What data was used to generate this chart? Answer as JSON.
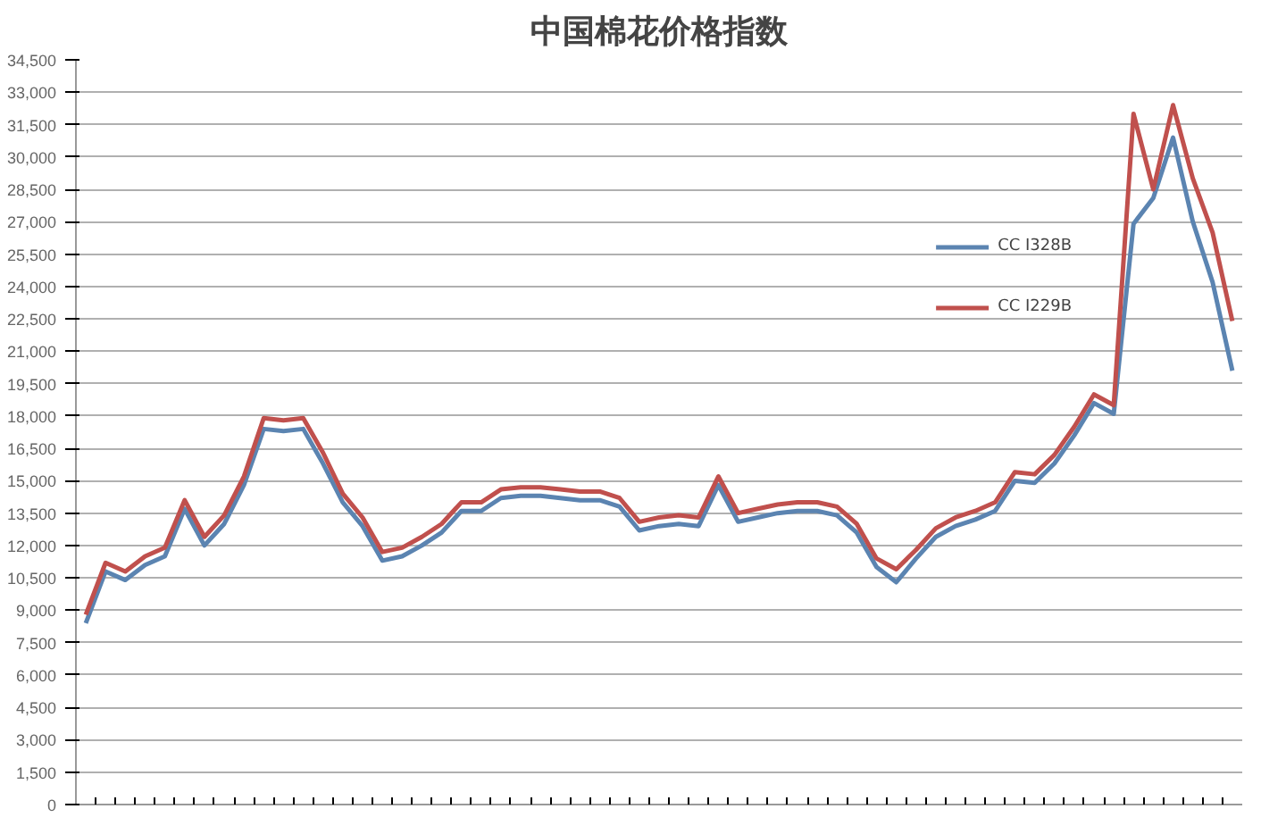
{
  "chart_data": {
    "type": "line",
    "title": "中国棉花价格指数",
    "categories": [
      null,
      null,
      null,
      null,
      null,
      null,
      null,
      null,
      null,
      null,
      null,
      null,
      null,
      null,
      null,
      null,
      null,
      null,
      null,
      null,
      null,
      null,
      null,
      null,
      null,
      null,
      null,
      null,
      null,
      null,
      null,
      null,
      null,
      null,
      null,
      null,
      null,
      null,
      null,
      null,
      null,
      null,
      null,
      null,
      null,
      null,
      null,
      null,
      null,
      null,
      null,
      null,
      null,
      null,
      null,
      null,
      null,
      null,
      null
    ],
    "series": [
      {
        "name": "CC I328B",
        "color": "#5b84b1",
        "values": [
          8400,
          10800,
          10400,
          11100,
          11500,
          13700,
          12000,
          13000,
          14800,
          17400,
          17300,
          17400,
          15800,
          14000,
          12900,
          11300,
          11500,
          12000,
          12600,
          13600,
          13600,
          14200,
          14300,
          14300,
          14200,
          14100,
          14100,
          13800,
          12700,
          12900,
          13000,
          12900,
          14800,
          13100,
          13300,
          13500,
          13600,
          13600,
          13400,
          12600,
          11000,
          10300,
          11400,
          12400,
          12900,
          13200,
          13600,
          15000,
          14900,
          15800,
          17100,
          18600,
          18100,
          26900,
          28100,
          30900,
          27000,
          24200,
          20100
        ]
      },
      {
        "name": "CC I229B",
        "color": "#c0504d",
        "values": [
          8800,
          11200,
          10800,
          11500,
          11900,
          14100,
          12400,
          13400,
          15200,
          17900,
          17800,
          17900,
          16300,
          14400,
          13300,
          11700,
          11900,
          12400,
          13000,
          14000,
          14000,
          14600,
          14700,
          14700,
          14600,
          14500,
          14500,
          14200,
          13100,
          13300,
          13400,
          13300,
          15200,
          13500,
          13700,
          13900,
          14000,
          14000,
          13800,
          13000,
          11400,
          10900,
          11800,
          12800,
          13300,
          13600,
          14000,
          15400,
          15300,
          16200,
          17500,
          19000,
          18500,
          32000,
          28500,
          32400,
          29000,
          26500,
          22400
        ]
      }
    ],
    "ylim": [
      0,
      34500
    ],
    "yticks": [
      {
        "value": 0,
        "label": "0"
      },
      {
        "value": 1500,
        "label": "1,500"
      },
      {
        "value": 3000,
        "label": "3,000"
      },
      {
        "value": 4500,
        "label": "4,500"
      },
      {
        "value": 6000,
        "label": "6,000"
      },
      {
        "value": 7500,
        "label": "7,500"
      },
      {
        "value": 9000,
        "label": "9,000"
      },
      {
        "value": 10500,
        "label": "10,500"
      },
      {
        "value": 12000,
        "label": "12,000"
      },
      {
        "value": 13500,
        "label": "13,500"
      },
      {
        "value": 15000,
        "label": "15,000"
      },
      {
        "value": 16500,
        "label": "16,500"
      },
      {
        "value": 18000,
        "label": "18,000"
      },
      {
        "value": 19500,
        "label": "19,500"
      },
      {
        "value": 21000,
        "label": "21,000"
      },
      {
        "value": 22500,
        "label": "22,500"
      },
      {
        "value": 24000,
        "label": "24,000"
      },
      {
        "value": 25500,
        "label": "25,500"
      },
      {
        "value": 27000,
        "label": "27,000"
      },
      {
        "value": 28500,
        "label": "28,500"
      },
      {
        "value": 30000,
        "label": "30,000"
      },
      {
        "value": 31500,
        "label": "31,500"
      },
      {
        "value": 33000,
        "label": "33,000"
      },
      {
        "value": 34500,
        "label": "34,500"
      }
    ],
    "grid": "y",
    "legend": "top right",
    "tick_labels": "y",
    "marker": "none",
    "line_style": "solid"
  }
}
